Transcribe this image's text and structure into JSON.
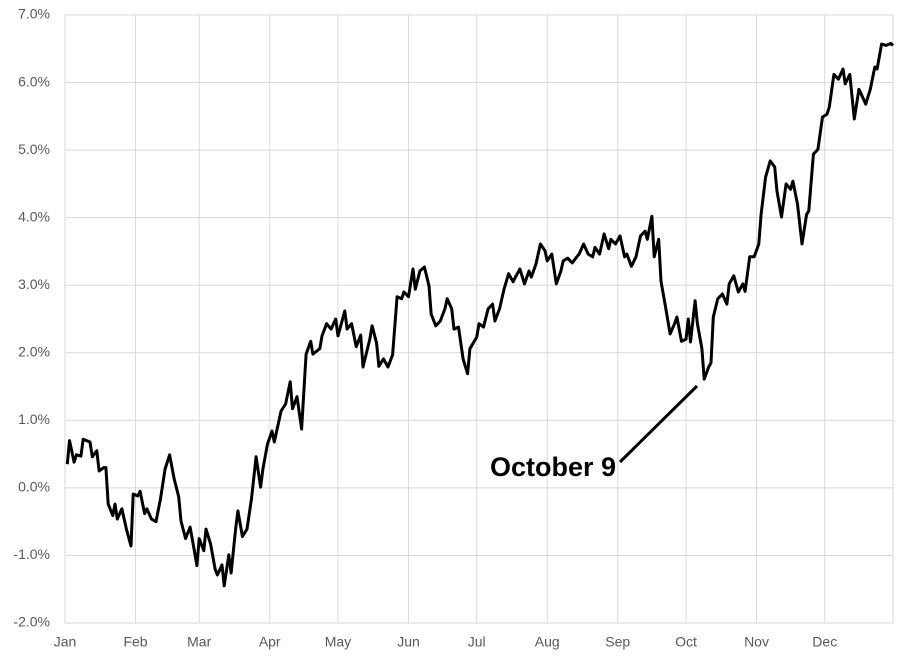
{
  "chart_data": {
    "type": "line",
    "annotation": "October 9",
    "color": "#000000",
    "grid": true,
    "xlim": [
      0,
      364
    ],
    "xticks": [
      {
        "value": 0,
        "label": "Jan"
      },
      {
        "value": 31,
        "label": "Feb"
      },
      {
        "value": 59,
        "label": "Mar"
      },
      {
        "value": 90,
        "label": "Apr"
      },
      {
        "value": 120,
        "label": "May"
      },
      {
        "value": 151,
        "label": "Jun"
      },
      {
        "value": 181,
        "label": "Jul"
      },
      {
        "value": 212,
        "label": "Aug"
      },
      {
        "value": 243,
        "label": "Sep"
      },
      {
        "value": 273,
        "label": "Oct"
      },
      {
        "value": 304,
        "label": "Nov"
      },
      {
        "value": 334,
        "label": "Dec"
      }
    ],
    "ylim": [
      -2,
      7
    ],
    "yticks": [
      {
        "value": -2,
        "label": "-2.0%"
      },
      {
        "value": -1,
        "label": "-1.0%"
      },
      {
        "value": 0,
        "label": "0.0%"
      },
      {
        "value": 1,
        "label": "1.0%"
      },
      {
        "value": 2,
        "label": "2.0%"
      },
      {
        "value": 3,
        "label": "3.0%"
      },
      {
        "value": 4,
        "label": "4.0%"
      },
      {
        "value": 5,
        "label": "5.0%"
      },
      {
        "value": 6,
        "label": "6.0%"
      },
      {
        "value": 7,
        "label": "7.0%"
      }
    ],
    "x": [
      1,
      2,
      4,
      5,
      7,
      8,
      11,
      12,
      14,
      15,
      17,
      18,
      19,
      21,
      22,
      23,
      25,
      27,
      29,
      30,
      32,
      33,
      35,
      36,
      38,
      40,
      42,
      44,
      46,
      48,
      50,
      51,
      53,
      55,
      57,
      58,
      59,
      61,
      62,
      64,
      66,
      67,
      69,
      70,
      72,
      73,
      75,
      76,
      78,
      80,
      82,
      84,
      86,
      87,
      89,
      91,
      92,
      95,
      97,
      99,
      100,
      102,
      104,
      106,
      108,
      109,
      112,
      113,
      115,
      117,
      119,
      120,
      123,
      124,
      126,
      128,
      130,
      131,
      134,
      135,
      137,
      138,
      140,
      142,
      144,
      146,
      148,
      149,
      151,
      153,
      154,
      156,
      158,
      160,
      161,
      163,
      165,
      167,
      168,
      170,
      171,
      173,
      175,
      177,
      178,
      181,
      182,
      184,
      186,
      188,
      189,
      191,
      193,
      195,
      197,
      198,
      200,
      202,
      204,
      205,
      207,
      209,
      211,
      212,
      214,
      216,
      218,
      219,
      221,
      223,
      225,
      226,
      228,
      230,
      232,
      233,
      235,
      237,
      239,
      240,
      242,
      244,
      246,
      247,
      249,
      251,
      253,
      255,
      256,
      258,
      259,
      261,
      262,
      264,
      266,
      268,
      269,
      271,
      273,
      274,
      275,
      277,
      278,
      280,
      281,
      283,
      284,
      285,
      287,
      289,
      291,
      292,
      294,
      296,
      298,
      299,
      301,
      303,
      305,
      306,
      308,
      310,
      312,
      313,
      315,
      317,
      319,
      320,
      322,
      324,
      326,
      327,
      329,
      331,
      333,
      335,
      336,
      338,
      340,
      342,
      343,
      345,
      347,
      349,
      350,
      352,
      354,
      356,
      357,
      359,
      361,
      363,
      364
    ],
    "values": [
      0.35,
      0.7,
      0.38,
      0.49,
      0.47,
      0.72,
      0.68,
      0.46,
      0.55,
      0.25,
      0.3,
      0.3,
      -0.24,
      -0.41,
      -0.24,
      -0.46,
      -0.31,
      -0.61,
      -0.86,
      -0.09,
      -0.12,
      -0.05,
      -0.38,
      -0.31,
      -0.46,
      -0.5,
      -0.16,
      0.28,
      0.49,
      0.13,
      -0.13,
      -0.49,
      -0.75,
      -0.58,
      -0.96,
      -1.15,
      -0.75,
      -0.93,
      -0.61,
      -0.83,
      -1.2,
      -1.29,
      -1.14,
      -1.45,
      -0.99,
      -1.26,
      -0.61,
      -0.34,
      -0.72,
      -0.61,
      -0.16,
      0.46,
      0.01,
      0.28,
      0.65,
      0.84,
      0.68,
      1.14,
      1.24,
      1.57,
      1.17,
      1.35,
      0.87,
      1.98,
      2.17,
      1.98,
      2.06,
      2.25,
      2.43,
      2.35,
      2.5,
      2.25,
      2.62,
      2.35,
      2.43,
      2.09,
      2.26,
      1.79,
      2.2,
      2.4,
      2.14,
      1.8,
      1.91,
      1.79,
      1.97,
      2.83,
      2.8,
      2.9,
      2.83,
      3.24,
      2.94,
      3.21,
      3.27,
      2.99,
      2.57,
      2.4,
      2.47,
      2.65,
      2.8,
      2.65,
      2.35,
      2.38,
      1.91,
      1.69,
      2.06,
      2.23,
      2.43,
      2.38,
      2.65,
      2.72,
      2.47,
      2.65,
      2.94,
      3.17,
      3.05,
      3.12,
      3.24,
      3.02,
      3.21,
      3.12,
      3.31,
      3.61,
      3.51,
      3.36,
      3.46,
      3.02,
      3.21,
      3.36,
      3.4,
      3.33,
      3.42,
      3.46,
      3.61,
      3.46,
      3.42,
      3.56,
      3.46,
      3.76,
      3.54,
      3.68,
      3.61,
      3.73,
      3.42,
      3.46,
      3.28,
      3.42,
      3.73,
      3.8,
      3.68,
      4.02,
      3.42,
      3.68,
      3.06,
      2.68,
      2.28,
      2.43,
      2.53,
      2.17,
      2.2,
      2.5,
      2.16,
      2.77,
      2.43,
      2.06,
      1.61,
      1.79,
      1.85,
      2.53,
      2.8,
      2.87,
      2.72,
      3.02,
      3.14,
      2.9,
      3.02,
      2.91,
      3.42,
      3.42,
      3.61,
      4.05,
      4.6,
      4.84,
      4.75,
      4.39,
      4.01,
      4.5,
      4.42,
      4.54,
      4.2,
      3.61,
      4.05,
      4.1,
      4.94,
      5.01,
      5.49,
      5.53,
      5.64,
      6.12,
      6.05,
      6.2,
      5.98,
      6.12,
      5.46,
      5.9,
      5.83,
      5.68,
      5.9,
      6.23,
      6.2,
      6.57,
      6.55,
      6.58,
      6.55
    ]
  }
}
